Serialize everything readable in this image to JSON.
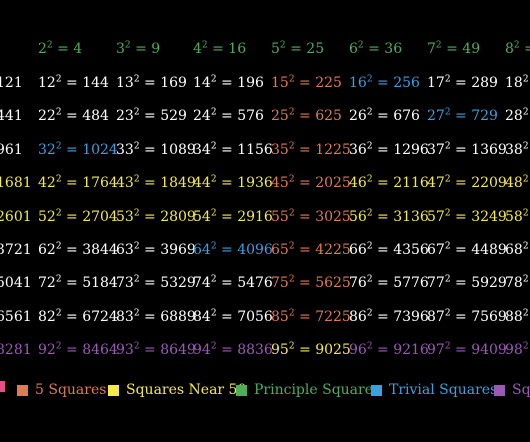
{
  "colors": {
    "default": "#ffffff",
    "five": "#e07a50",
    "near50": "#f5e94a",
    "principle": "#4caf5a",
    "trivial": "#3aa0e0",
    "extra": "#9b59b6"
  },
  "rows": [
    {
      "cells": [
        {
          "text": "",
          "color": "default"
        },
        {
          "base": "2",
          "result": "4",
          "color": "principle"
        },
        {
          "base": "3",
          "result": "9",
          "color": "principle"
        },
        {
          "base": "4",
          "result": "16",
          "color": "principle"
        },
        {
          "base": "5",
          "result": "25",
          "color": "principle"
        },
        {
          "base": "6",
          "result": "36",
          "color": "principle"
        },
        {
          "base": "7",
          "result": "49",
          "color": "principle"
        },
        {
          "base": "8",
          "result": "",
          "color": "principle"
        }
      ]
    },
    {
      "cells": [
        {
          "text": "121",
          "color": "default"
        },
        {
          "base": "12",
          "result": "144",
          "color": "default"
        },
        {
          "base": "13",
          "result": "169",
          "color": "default"
        },
        {
          "base": "14",
          "result": "196",
          "color": "default"
        },
        {
          "base": "15",
          "result": "225",
          "color": "five"
        },
        {
          "base": "16",
          "result": "256",
          "color": "trivial"
        },
        {
          "base": "17",
          "result": "289",
          "color": "default"
        },
        {
          "base": "18",
          "result": "",
          "color": "default"
        }
      ]
    },
    {
      "cells": [
        {
          "text": "441",
          "color": "default"
        },
        {
          "base": "22",
          "result": "484",
          "color": "default"
        },
        {
          "base": "23",
          "result": "529",
          "color": "default"
        },
        {
          "base": "24",
          "result": "576",
          "color": "default"
        },
        {
          "base": "25",
          "result": "625",
          "color": "five"
        },
        {
          "base": "26",
          "result": "676",
          "color": "default"
        },
        {
          "base": "27",
          "result": "729",
          "color": "trivial"
        },
        {
          "base": "28",
          "result": "",
          "color": "default"
        }
      ]
    },
    {
      "cells": [
        {
          "text": "961",
          "color": "default"
        },
        {
          "base": "32",
          "result": "1024",
          "color": "trivial"
        },
        {
          "base": "33",
          "result": "1089",
          "color": "default"
        },
        {
          "base": "34",
          "result": "1156",
          "color": "default"
        },
        {
          "base": "35",
          "result": "1225",
          "color": "five"
        },
        {
          "base": "36",
          "result": "1296",
          "color": "default"
        },
        {
          "base": "37",
          "result": "1369",
          "color": "default"
        },
        {
          "base": "38",
          "result": "",
          "color": "default"
        }
      ]
    },
    {
      "cells": [
        {
          "text": "1681",
          "color": "near50"
        },
        {
          "base": "42",
          "result": "1764",
          "color": "near50"
        },
        {
          "base": "43",
          "result": "1849",
          "color": "near50"
        },
        {
          "base": "44",
          "result": "1936",
          "color": "near50"
        },
        {
          "base": "45",
          "result": "2025",
          "color": "five"
        },
        {
          "base": "46",
          "result": "2116",
          "color": "near50"
        },
        {
          "base": "47",
          "result": "2209",
          "color": "near50"
        },
        {
          "base": "48",
          "result": "",
          "color": "near50"
        }
      ]
    },
    {
      "cells": [
        {
          "text": "2601",
          "color": "near50"
        },
        {
          "base": "52",
          "result": "2704",
          "color": "near50"
        },
        {
          "base": "53",
          "result": "2809",
          "color": "near50"
        },
        {
          "base": "54",
          "result": "2916",
          "color": "near50"
        },
        {
          "base": "55",
          "result": "3025",
          "color": "five"
        },
        {
          "base": "56",
          "result": "3136",
          "color": "near50"
        },
        {
          "base": "57",
          "result": "3249",
          "color": "near50"
        },
        {
          "base": "58",
          "result": "",
          "color": "near50"
        }
      ]
    },
    {
      "cells": [
        {
          "text": "3721",
          "color": "default"
        },
        {
          "base": "62",
          "result": "3844",
          "color": "default"
        },
        {
          "base": "63",
          "result": "3969",
          "color": "default"
        },
        {
          "base": "64",
          "result": "4096",
          "color": "trivial"
        },
        {
          "base": "65",
          "result": "4225",
          "color": "five"
        },
        {
          "base": "66",
          "result": "4356",
          "color": "default"
        },
        {
          "base": "67",
          "result": "4489",
          "color": "default"
        },
        {
          "base": "68",
          "result": "",
          "color": "default"
        }
      ]
    },
    {
      "cells": [
        {
          "text": "5041",
          "color": "default"
        },
        {
          "base": "72",
          "result": "5184",
          "color": "default"
        },
        {
          "base": "73",
          "result": "5329",
          "color": "default"
        },
        {
          "base": "74",
          "result": "5476",
          "color": "default"
        },
        {
          "base": "75",
          "result": "5625",
          "color": "five"
        },
        {
          "base": "76",
          "result": "5776",
          "color": "default"
        },
        {
          "base": "77",
          "result": "5929",
          "color": "default"
        },
        {
          "base": "78",
          "result": "",
          "color": "default"
        }
      ]
    },
    {
      "cells": [
        {
          "text": "6561",
          "color": "default"
        },
        {
          "base": "82",
          "result": "6724",
          "color": "default"
        },
        {
          "base": "83",
          "result": "6889",
          "color": "default"
        },
        {
          "base": "84",
          "result": "7056",
          "color": "default"
        },
        {
          "base": "85",
          "result": "7225",
          "color": "five"
        },
        {
          "base": "86",
          "result": "7396",
          "color": "default"
        },
        {
          "base": "87",
          "result": "7569",
          "color": "default"
        },
        {
          "base": "88",
          "result": "",
          "color": "default"
        }
      ]
    },
    {
      "cells": [
        {
          "text": "8281",
          "color": "extra"
        },
        {
          "base": "92",
          "result": "8464",
          "color": "extra"
        },
        {
          "base": "93",
          "result": "8649",
          "color": "extra"
        },
        {
          "base": "94",
          "result": "8836",
          "color": "extra"
        },
        {
          "base": "95",
          "result": "9025",
          "color": "near50"
        },
        {
          "base": "96",
          "result": "9216",
          "color": "extra"
        },
        {
          "base": "97",
          "result": "9409",
          "color": "extra"
        },
        {
          "base": "98",
          "result": "",
          "color": "extra"
        }
      ]
    }
  ],
  "legend": [
    {
      "label": "5 Squares",
      "color": "five"
    },
    {
      "label": "Squares Near 50",
      "color": "near50"
    },
    {
      "label": "Principle Squares",
      "color": "principle"
    },
    {
      "label": "Trivial Squares",
      "color": "trivial"
    },
    {
      "label": "Squ",
      "color": "extra"
    }
  ]
}
